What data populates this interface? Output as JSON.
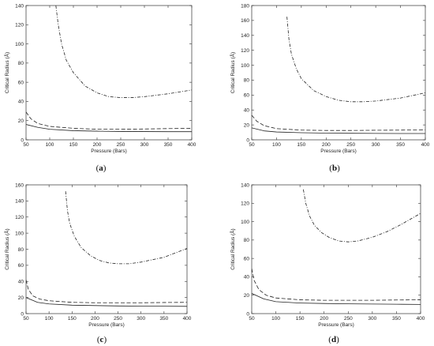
{
  "chart_data": [
    {
      "type": "line",
      "panel_label": "a",
      "xlabel": "Pressure (Bars)",
      "ylabel": "Critical Radius (Å)",
      "xlim": [
        50,
        400
      ],
      "ylim": [
        0,
        140
      ],
      "xticks": [
        50,
        100,
        150,
        200,
        250,
        300,
        350,
        400
      ],
      "yticks": [
        0,
        20,
        40,
        60,
        80,
        100,
        120,
        140
      ],
      "grid": false,
      "series": [
        {
          "style": "solid",
          "x": [
            50,
            75,
            100,
            150,
            200,
            250,
            300,
            350,
            400
          ],
          "y": [
            16,
            13,
            11,
            9.5,
            9,
            8.7,
            8.6,
            8.5,
            8.5
          ]
        },
        {
          "style": "dashed",
          "x": [
            50,
            60,
            75,
            100,
            150,
            200,
            250,
            300,
            350,
            400
          ],
          "y": [
            29,
            22,
            17,
            14,
            12,
            11,
            11,
            11.3,
            11.7,
            12
          ]
        },
        {
          "style": "dashdot",
          "x": [
            113,
            118,
            125,
            135,
            150,
            175,
            200,
            225,
            250,
            275,
            300,
            350,
            400
          ],
          "y": [
            140,
            120,
            100,
            83,
            70,
            56,
            49,
            45,
            44,
            44,
            45,
            48,
            52
          ]
        }
      ]
    },
    {
      "type": "line",
      "panel_label": "b",
      "xlabel": "Pressure (Bars)",
      "ylabel": "Critical Radius (Å)",
      "xlim": [
        50,
        400
      ],
      "ylim": [
        0,
        180
      ],
      "xticks": [
        50,
        100,
        150,
        200,
        250,
        300,
        350,
        400
      ],
      "yticks": [
        0,
        20,
        40,
        60,
        80,
        100,
        120,
        140,
        160,
        180
      ],
      "grid": false,
      "series": [
        {
          "style": "solid",
          "x": [
            50,
            75,
            100,
            150,
            200,
            250,
            300,
            350,
            400
          ],
          "y": [
            16,
            12,
            10.5,
            9.5,
            9,
            8.8,
            8.6,
            8.5,
            8.5
          ]
        },
        {
          "style": "dashed",
          "x": [
            50,
            60,
            75,
            100,
            150,
            200,
            250,
            300,
            350,
            400
          ],
          "y": [
            33,
            25,
            19,
            15,
            13,
            12.5,
            12.5,
            12.8,
            13,
            13.5
          ]
        },
        {
          "style": "dashdot",
          "x": [
            121,
            125,
            130,
            140,
            150,
            175,
            200,
            225,
            250,
            275,
            300,
            350,
            400
          ],
          "y": [
            165,
            135,
            115,
            95,
            82,
            66,
            58,
            53,
            51,
            51,
            52,
            56,
            63
          ]
        }
      ]
    },
    {
      "type": "line",
      "panel_label": "c",
      "xlabel": "Pressure (Bars)",
      "ylabel": "Critical Radius (Å)",
      "xlim": [
        50,
        400
      ],
      "ylim": [
        0,
        160
      ],
      "xticks": [
        50,
        100,
        150,
        200,
        250,
        300,
        350,
        400
      ],
      "yticks": [
        0,
        20,
        40,
        60,
        80,
        100,
        120,
        140,
        160
      ],
      "grid": false,
      "series": [
        {
          "style": "solid",
          "x": [
            50,
            75,
            100,
            150,
            200,
            250,
            300,
            350,
            400
          ],
          "y": [
            20,
            14,
            12,
            10.5,
            10,
            9.5,
            9.3,
            9.2,
            9
          ]
        },
        {
          "style": "dashed",
          "x": [
            50,
            55,
            65,
            80,
            100,
            150,
            200,
            250,
            300,
            350,
            400
          ],
          "y": [
            42,
            30,
            22,
            18,
            16,
            14,
            13.5,
            13.5,
            13.5,
            13.8,
            14
          ]
        },
        {
          "style": "dashdot",
          "x": [
            136,
            140,
            145,
            155,
            170,
            190,
            210,
            230,
            250,
            275,
            300,
            350,
            400
          ],
          "y": [
            152,
            128,
            112,
            96,
            82,
            72,
            66,
            63,
            62,
            62,
            64,
            70,
            81
          ]
        }
      ]
    },
    {
      "type": "line",
      "panel_label": "d",
      "xlabel": "Pressure (Bars)",
      "ylabel": "Critical Radius (Å)",
      "xlim": [
        50,
        400
      ],
      "ylim": [
        0,
        140
      ],
      "xticks": [
        50,
        100,
        150,
        200,
        250,
        300,
        350,
        400
      ],
      "yticks": [
        0,
        20,
        40,
        60,
        80,
        100,
        120,
        140
      ],
      "grid": false,
      "series": [
        {
          "style": "solid",
          "x": [
            50,
            75,
            100,
            150,
            200,
            250,
            300,
            350,
            400
          ],
          "y": [
            22,
            16,
            13,
            11.5,
            11,
            10.6,
            10.4,
            10.2,
            10
          ]
        },
        {
          "style": "dashed",
          "x": [
            50,
            55,
            65,
            80,
            100,
            150,
            200,
            250,
            300,
            350,
            400
          ],
          "y": [
            49,
            36,
            26,
            20,
            17,
            15,
            14.5,
            14.5,
            14.5,
            14.8,
            15
          ]
        },
        {
          "style": "dashdot",
          "x": [
            157,
            162,
            170,
            180,
            195,
            210,
            230,
            250,
            270,
            300,
            330,
            360,
            400
          ],
          "y": [
            135,
            120,
            106,
            96,
            88,
            83,
            79,
            78,
            79,
            83,
            89,
            97,
            109
          ]
        }
      ]
    }
  ]
}
